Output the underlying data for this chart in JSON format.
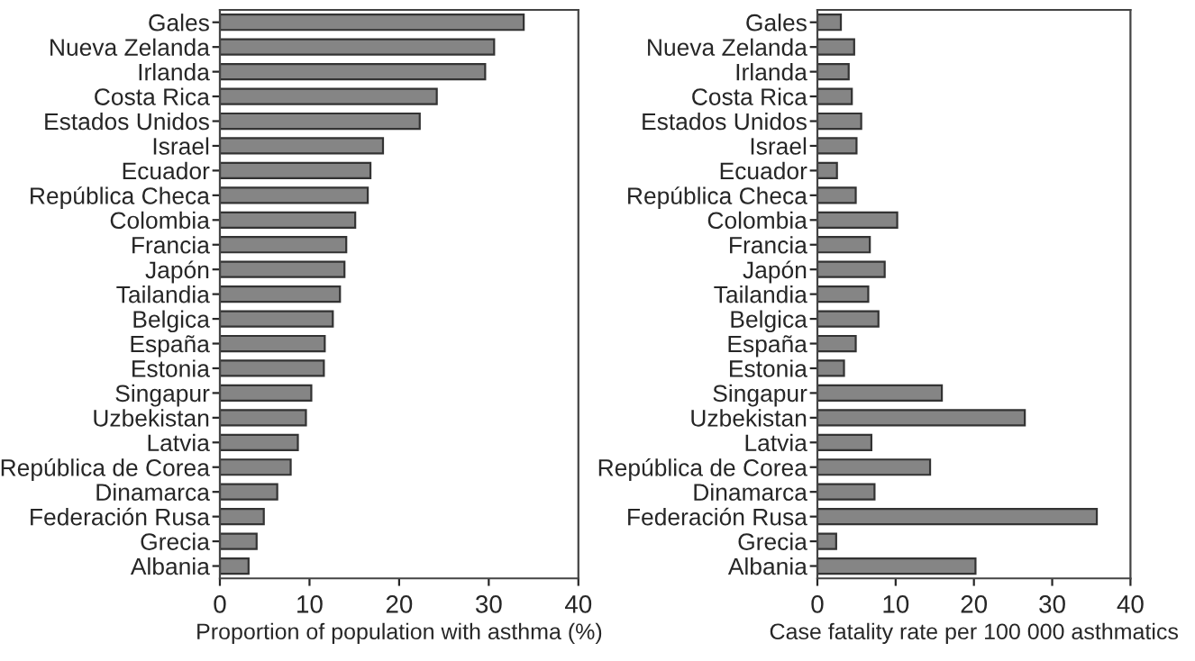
{
  "chart_data": [
    {
      "type": "bar",
      "orientation": "horizontal",
      "xlabel": "Proportion of population with asthma (%)",
      "categories": [
        "Gales",
        "Nueva Zelanda",
        "Irlanda",
        "Costa Rica",
        "Estados Unidos",
        "Israel",
        "Ecuador",
        "República Checa",
        "Colombia",
        "Francia",
        "Japón",
        "Tailandia",
        "Belgica",
        "España",
        "Estonia",
        "Singapur",
        "Uzbekistan",
        "Latvia",
        "República de Corea",
        "Dinamarca",
        "Federación Rusa",
        "Grecia",
        "Albania"
      ],
      "series": [
        {
          "color": "#858585",
          "values": [
            33.9,
            30.6,
            29.6,
            24.2,
            22.3,
            18.2,
            16.8,
            16.5,
            15.1,
            14.1,
            13.9,
            13.4,
            12.6,
            11.7,
            11.6,
            10.2,
            9.6,
            8.7,
            7.9,
            6.4,
            4.9,
            4.1,
            3.2
          ]
        }
      ],
      "xlim": [
        0,
        40
      ],
      "xticks": [
        0,
        10,
        20,
        30,
        40
      ],
      "grid": false
    },
    {
      "type": "bar",
      "orientation": "horizontal",
      "xlabel": "Case fatality rate per 100 000 asthmatics",
      "categories": [
        "Gales",
        "Nueva Zelanda",
        "Irlanda",
        "Costa Rica",
        "Estados Unidos",
        "Israel",
        "Ecuador",
        "República Checa",
        "Colombia",
        "Francia",
        "Japón",
        "Tailandia",
        "Belgica",
        "España",
        "Estonia",
        "Singapur",
        "Uzbekistan",
        "Latvia",
        "República de Corea",
        "Dinamarca",
        "Federación Rusa",
        "Grecia",
        "Albania"
      ],
      "series": [
        {
          "color": "#858585",
          "values": [
            3.0,
            4.7,
            4.0,
            4.4,
            5.6,
            5.0,
            2.5,
            4.9,
            10.2,
            6.7,
            8.6,
            6.5,
            7.8,
            4.9,
            3.4,
            15.9,
            26.5,
            6.9,
            14.4,
            7.3,
            35.7,
            2.4,
            20.2
          ]
        }
      ],
      "xlim": [
        0,
        40
      ],
      "xticks": [
        0,
        10,
        20,
        30,
        40
      ],
      "grid": false
    }
  ]
}
